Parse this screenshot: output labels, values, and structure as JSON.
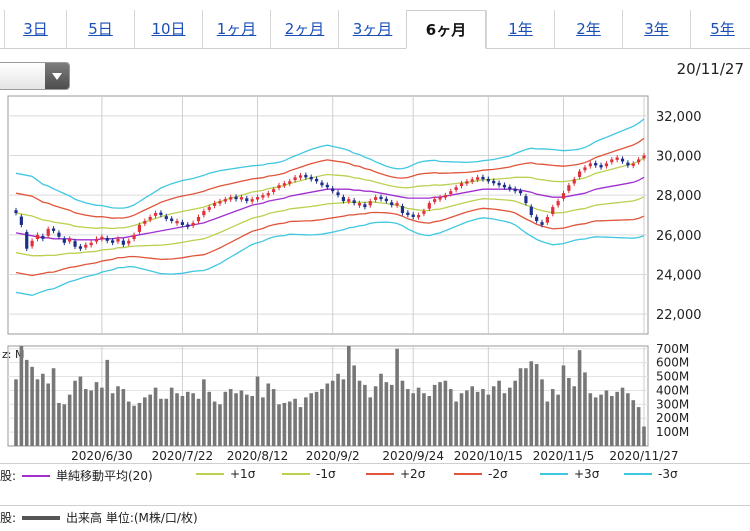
{
  "tabs": [
    {
      "label": "3日",
      "active": false
    },
    {
      "label": "5日",
      "active": false
    },
    {
      "label": "10日",
      "active": false
    },
    {
      "label": "1ヶ月",
      "active": false
    },
    {
      "label": "2ヶ月",
      "active": false
    },
    {
      "label": "3ヶ月",
      "active": false
    },
    {
      "label": "6ヶ月",
      "active": true
    },
    {
      "label": "1年",
      "active": false
    },
    {
      "label": "2年",
      "active": false
    },
    {
      "label": "3年",
      "active": false
    },
    {
      "label": "5年",
      "active": false
    }
  ],
  "header": {
    "date": "20/11/27"
  },
  "legend": {
    "row1_prefix": "股:",
    "row2_prefix": "股:",
    "items": [
      {
        "label": "単純移動平均(20)",
        "color": "#a030d0"
      },
      {
        "label": "+1σ",
        "color": "#bcd050"
      },
      {
        "label": "-1σ",
        "color": "#bcd050"
      },
      {
        "label": "+2σ",
        "color": "#e0553a"
      },
      {
        "label": "-2σ",
        "color": "#e0553a"
      },
      {
        "label": "+3σ",
        "color": "#40c8e0"
      },
      {
        "label": "-3σ",
        "color": "#40c8e0"
      }
    ],
    "volume_label": "出来高 単位:(M株/口/枚)",
    "volume_color": "#555555"
  },
  "chart_data": {
    "type": "candlestick",
    "price_ticks": [
      "32,000",
      "30,000",
      "28,000",
      "26,000",
      "24,000",
      "22,000"
    ],
    "price_tick_values": [
      32000,
      30000,
      28000,
      26000,
      24000,
      22000
    ],
    "price_ylim": [
      21000,
      33000
    ],
    "volume_ticks": [
      "700M",
      "600M",
      "500M",
      "400M",
      "300M",
      "200M",
      "100M"
    ],
    "volume_tick_values": [
      700,
      600,
      500,
      400,
      300,
      200,
      100
    ],
    "volume_ylim": [
      0,
      720
    ],
    "volume_axis_label": "z: M",
    "x_labels": [
      "2020/6/30",
      "2020/7/22",
      "2020/8/12",
      "2020/9/2",
      "2020/9/24",
      "2020/10/15",
      "2020/11/5",
      "2020/11/27"
    ],
    "x_label_positions": [
      16,
      31,
      45,
      59,
      74,
      88,
      102,
      117
    ],
    "num_points": 118,
    "close": [
      27100,
      26500,
      25300,
      25700,
      26000,
      25800,
      26300,
      26200,
      25900,
      25600,
      25800,
      25400,
      25300,
      25500,
      25600,
      25800,
      25900,
      25700,
      25600,
      25800,
      25500,
      25700,
      26000,
      26500,
      26700,
      26900,
      27100,
      27000,
      26800,
      26700,
      26700,
      26500,
      26400,
      26600,
      26900,
      27200,
      27400,
      27600,
      27700,
      27800,
      27900,
      27800,
      27900,
      27700,
      27800,
      27900,
      28000,
      28100,
      28300,
      28500,
      28600,
      28700,
      28900,
      29000,
      28900,
      28800,
      28700,
      28500,
      28400,
      28200,
      28000,
      27700,
      27800,
      27600,
      27600,
      27400,
      27700,
      27900,
      27800,
      27700,
      27500,
      27600,
      27100,
      27000,
      26900,
      27000,
      27200,
      27600,
      27800,
      27900,
      28000,
      28200,
      28400,
      28600,
      28700,
      28800,
      28900,
      28800,
      28700,
      28600,
      28500,
      28400,
      28300,
      28200,
      28100,
      27600,
      27000,
      26700,
      26500,
      26900,
      27400,
      27700,
      28100,
      28500,
      28800,
      29200,
      29400,
      29600,
      29500,
      29400,
      29600,
      29800,
      29900,
      29700,
      29500,
      29600,
      29800,
      30000
    ],
    "ma20": [
      26100,
      26050,
      26000,
      25950,
      25900,
      25850,
      25850,
      25800,
      25800,
      25800,
      25800,
      25750,
      25750,
      25750,
      25750,
      25750,
      25800,
      25800,
      25800,
      25850,
      25850,
      25900,
      25950,
      26000,
      26050,
      26100,
      26150,
      26200,
      26250,
      26300,
      26350,
      26400,
      26450,
      26500,
      26550,
      26600,
      26700,
      26800,
      26900,
      27000,
      27100,
      27200,
      27300,
      27400,
      27500,
      27550,
      27600,
      27700,
      27750,
      27800,
      27850,
      27950,
      28000,
      28050,
      28100,
      28150,
      28200,
      28250,
      28300,
      28300,
      28300,
      28300,
      28300,
      28250,
      28250,
      28200,
      28200,
      28150,
      28100,
      28050,
      28000,
      27950,
      27900,
      27850,
      27850,
      27850,
      27850,
      27850,
      27900,
      27900,
      27950,
      28000,
      28050,
      28100,
      28150,
      28200,
      28250,
      28300,
      28300,
      28300,
      28300,
      28300,
      28300,
      28300,
      28250,
      28200,
      28150,
      28050,
      28000,
      27950,
      27900,
      27900,
      27900,
      27950,
      28000,
      28050,
      28100,
      28200,
      28300,
      28350,
      28400,
      28450,
      28500,
      28550,
      28600,
      28650,
      28750,
      28900
    ],
    "sigma": [
      1000,
      1000,
      1000,
      1000,
      950,
      900,
      870,
      840,
      800,
      760,
      720,
      680,
      650,
      620,
      600,
      580,
      560,
      540,
      520,
      500,
      500,
      500,
      520,
      560,
      600,
      640,
      680,
      720,
      740,
      760,
      770,
      780,
      780,
      780,
      790,
      800,
      800,
      790,
      780,
      760,
      740,
      720,
      700,
      680,
      660,
      650,
      640,
      630,
      620,
      620,
      630,
      640,
      660,
      680,
      700,
      720,
      730,
      740,
      740,
      720,
      700,
      680,
      650,
      620,
      600,
      570,
      540,
      510,
      490,
      470,
      460,
      460,
      480,
      520,
      560,
      600,
      620,
      630,
      620,
      600,
      580,
      560,
      540,
      520,
      500,
      490,
      480,
      480,
      490,
      500,
      520,
      540,
      560,
      600,
      650,
      700,
      740,
      760,
      780,
      790,
      800,
      790,
      780,
      770,
      760,
      760,
      770,
      780,
      800,
      820,
      840,
      860,
      880,
      900,
      920,
      940,
      960,
      980
    ],
    "volume": [
      480,
      720,
      620,
      570,
      480,
      520,
      450,
      560,
      310,
      300,
      370,
      470,
      500,
      410,
      400,
      460,
      420,
      620,
      380,
      430,
      410,
      320,
      290,
      310,
      350,
      370,
      420,
      340,
      340,
      420,
      380,
      360,
      390,
      380,
      340,
      480,
      390,
      320,
      300,
      390,
      410,
      380,
      400,
      370,
      360,
      500,
      350,
      450,
      410,
      300,
      310,
      320,
      340,
      280,
      350,
      380,
      390,
      410,
      450,
      470,
      520,
      480,
      720,
      580,
      470,
      440,
      350,
      430,
      520,
      460,
      440,
      700,
      470,
      410,
      380,
      420,
      380,
      360,
      440,
      460,
      470,
      410,
      320,
      380,
      400,
      430,
      390,
      410,
      370,
      430,
      470,
      380,
      420,
      470,
      560,
      560,
      610,
      590,
      480,
      320,
      410,
      370,
      580,
      490,
      430,
      690,
      530,
      380,
      350,
      370,
      400,
      360,
      390,
      420,
      380,
      330,
      280,
      140
    ],
    "up": [
      false,
      false,
      false,
      true,
      true,
      false,
      true,
      false,
      false,
      false,
      true,
      false,
      false,
      true,
      true,
      true,
      true,
      false,
      false,
      true,
      false,
      true,
      true,
      true,
      true,
      true,
      true,
      false,
      false,
      false,
      true,
      false,
      false,
      true,
      true,
      true,
      true,
      true,
      true,
      true,
      true,
      false,
      true,
      false,
      true,
      true,
      true,
      true,
      true,
      true,
      true,
      true,
      true,
      true,
      false,
      false,
      false,
      false,
      false,
      false,
      false,
      false,
      true,
      false,
      true,
      false,
      true,
      true,
      false,
      false,
      false,
      true,
      false,
      false,
      false,
      true,
      true,
      true,
      true,
      true,
      true,
      true,
      true,
      true,
      true,
      true,
      true,
      false,
      false,
      false,
      false,
      false,
      false,
      false,
      false,
      false,
      false,
      false,
      false,
      true,
      true,
      true,
      true,
      true,
      true,
      true,
      true,
      true,
      false,
      false,
      true,
      true,
      true,
      false,
      false,
      true,
      true,
      true
    ]
  }
}
